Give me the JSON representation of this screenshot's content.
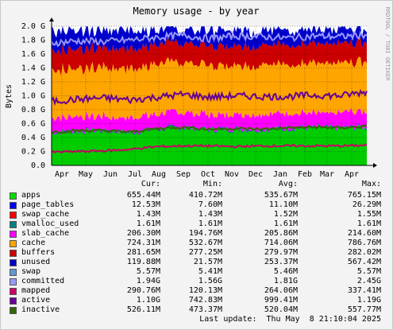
{
  "chart_data": {
    "type": "area",
    "title": "Memory usage - by year",
    "ylabel": "Bytes",
    "side_label": "RRDTOOL / TOBI OETIKER",
    "yticks": [
      "0.0",
      "0.2 G",
      "0.4 G",
      "0.6 G",
      "0.8 G",
      "1.0 G",
      "1.2 G",
      "1.4 G",
      "1.6 G",
      "1.8 G",
      "2.0 G"
    ],
    "ylim": [
      0,
      2.0
    ],
    "y_unit": "GB",
    "xticks": [
      "Apr",
      "May",
      "Jun",
      "Jul",
      "Aug",
      "Sep",
      "Oct",
      "Nov",
      "Dec",
      "Jan",
      "Feb",
      "Mar",
      "Apr"
    ],
    "stacked_series": [
      {
        "name": "apps",
        "color": "#00cc00",
        "values": [
          0.47,
          0.49,
          0.5,
          0.47,
          0.52,
          0.54,
          0.51,
          0.52,
          0.51,
          0.53,
          0.54,
          0.53,
          0.55
        ]
      },
      {
        "name": "page_tables",
        "color": "#0000ff",
        "values": [
          0.01,
          0.01,
          0.01,
          0.01,
          0.01,
          0.01,
          0.01,
          0.01,
          0.01,
          0.01,
          0.01,
          0.01,
          0.01
        ]
      },
      {
        "name": "swap_cache",
        "color": "#ff0000",
        "values": [
          0.0015,
          0.0015,
          0.0015,
          0.0015,
          0.0015,
          0.0015,
          0.0015,
          0.0015,
          0.0015,
          0.0015,
          0.0015,
          0.0015,
          0.0015
        ]
      },
      {
        "name": "vmalloc_used",
        "color": "#008080",
        "values": [
          0.0016,
          0.0016,
          0.0016,
          0.0016,
          0.0016,
          0.0016,
          0.0016,
          0.0016,
          0.0016,
          0.0016,
          0.0016,
          0.0016,
          0.0016
        ]
      },
      {
        "name": "slab_cache",
        "color": "#ff00ff",
        "values": [
          0.21,
          0.19,
          0.2,
          0.19,
          0.21,
          0.21,
          0.21,
          0.2,
          0.21,
          0.21,
          0.2,
          0.21,
          0.21
        ]
      },
      {
        "name": "cache",
        "color": "#ffa500",
        "values": [
          0.7,
          0.69,
          0.7,
          0.71,
          0.71,
          0.72,
          0.72,
          0.71,
          0.71,
          0.71,
          0.72,
          0.71,
          0.72
        ]
      },
      {
        "name": "buffers",
        "color": "#cc0000",
        "values": [
          0.28,
          0.28,
          0.28,
          0.28,
          0.28,
          0.28,
          0.28,
          0.28,
          0.28,
          0.28,
          0.28,
          0.28,
          0.28
        ]
      },
      {
        "name": "unused",
        "color": "#0000cc",
        "values": [
          0.27,
          0.28,
          0.26,
          0.28,
          0.22,
          0.19,
          0.22,
          0.23,
          0.22,
          0.21,
          0.21,
          0.21,
          0.18
        ]
      },
      {
        "name": "swap",
        "color": "#6699cc",
        "values": [
          0.005,
          0.005,
          0.005,
          0.005,
          0.005,
          0.005,
          0.005,
          0.005,
          0.005,
          0.005,
          0.005,
          0.005,
          0.005
        ]
      }
    ],
    "line_series": [
      {
        "name": "committed",
        "color": "#9999ff",
        "values": [
          1.76,
          1.79,
          1.78,
          1.8,
          1.84,
          1.87,
          1.82,
          1.86,
          1.85,
          1.83,
          1.86,
          1.85,
          1.88
        ]
      },
      {
        "name": "mapped",
        "color": "#cc0066",
        "values": [
          0.19,
          0.2,
          0.21,
          0.23,
          0.27,
          0.28,
          0.28,
          0.27,
          0.28,
          0.28,
          0.28,
          0.28,
          0.29
        ]
      },
      {
        "name": "active",
        "color": "#660099",
        "values": [
          0.92,
          0.95,
          0.97,
          0.94,
          0.98,
          1.02,
          0.98,
          1.0,
          0.99,
          0.99,
          1.01,
          1.0,
          1.06
        ]
      },
      {
        "name": "inactive",
        "color": "#336600",
        "values": [
          0.48,
          0.5,
          0.5,
          0.48,
          0.53,
          0.55,
          0.52,
          0.53,
          0.52,
          0.54,
          0.55,
          0.54,
          0.56
        ]
      }
    ],
    "legend_headers": {
      "cur": "Cur:",
      "min": "Min:",
      "avg": "Avg:",
      "max": "Max:"
    },
    "legend": [
      {
        "name": "apps",
        "color": "#00e000",
        "cur": "655.44M",
        "min": "410.72M",
        "avg": "535.67M",
        "max": "765.15M"
      },
      {
        "name": "page_tables",
        "color": "#0000ff",
        "cur": "12.53M",
        "min": "7.60M",
        "avg": "11.10M",
        "max": "26.29M"
      },
      {
        "name": "swap_cache",
        "color": "#ff0000",
        "cur": "1.43M",
        "min": "1.43M",
        "avg": "1.52M",
        "max": "1.55M"
      },
      {
        "name": "vmalloc_used",
        "color": "#008080",
        "cur": "1.61M",
        "min": "1.61M",
        "avg": "1.61M",
        "max": "1.61M"
      },
      {
        "name": "slab_cache",
        "color": "#ff00ff",
        "cur": "206.30M",
        "min": "194.76M",
        "avg": "205.86M",
        "max": "214.60M"
      },
      {
        "name": "cache",
        "color": "#ffa500",
        "cur": "724.31M",
        "min": "532.67M",
        "avg": "714.06M",
        "max": "786.76M"
      },
      {
        "name": "buffers",
        "color": "#cc0000",
        "cur": "281.65M",
        "min": "277.25M",
        "avg": "279.97M",
        "max": "282.02M"
      },
      {
        "name": "unused",
        "color": "#0000cc",
        "cur": "119.88M",
        "min": "21.57M",
        "avg": "253.37M",
        "max": "567.42M"
      },
      {
        "name": "swap",
        "color": "#6699cc",
        "cur": "5.57M",
        "min": "5.41M",
        "avg": "5.46M",
        "max": "5.57M"
      },
      {
        "name": "committed",
        "color": "#9999ff",
        "cur": "1.94G",
        "min": "1.56G",
        "avg": "1.81G",
        "max": "2.45G"
      },
      {
        "name": "mapped",
        "color": "#cc0066",
        "cur": "290.76M",
        "min": "120.13M",
        "avg": "264.06M",
        "max": "337.41M"
      },
      {
        "name": "active",
        "color": "#660099",
        "cur": "1.10G",
        "min": "742.83M",
        "avg": "999.41M",
        "max": "1.19G"
      },
      {
        "name": "inactive",
        "color": "#336600",
        "cur": "526.11M",
        "min": "473.37M",
        "avg": "520.04M",
        "max": "557.77M"
      }
    ],
    "footer": "Last update:  Thu May  8 21:10:04 2025",
    "grid": true
  }
}
